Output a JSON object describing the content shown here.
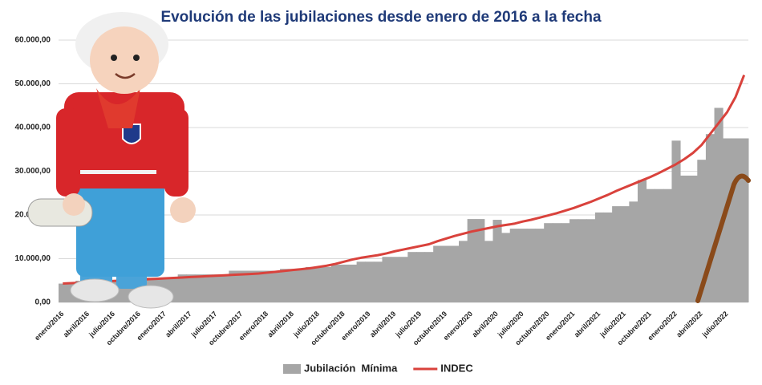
{
  "chart_data": {
    "type": "bar",
    "title": "Evolución de las jubilaciones desde enero de 2016 a la fecha",
    "categories": [
      "enero/2016",
      null,
      null,
      "abril/2016",
      null,
      null,
      "julio/2016",
      null,
      null,
      "octubre/2016",
      null,
      null,
      "enero/2017",
      null,
      null,
      "abril/2017",
      null,
      null,
      "julio/2017",
      null,
      null,
      "octubre/2017",
      null,
      null,
      "enero/2018",
      null,
      null,
      "abril/2018",
      null,
      null,
      "julio/2018",
      null,
      null,
      "octubre/2018",
      null,
      null,
      "enero/2019",
      null,
      null,
      "abril/2019",
      null,
      null,
      "julio/2019",
      null,
      null,
      "octubre/2019",
      null,
      null,
      "enero/2020",
      null,
      null,
      "abril/2020",
      null,
      null,
      "julio/2020",
      null,
      null,
      "octubre/2020",
      null,
      null,
      "enero/2021",
      null,
      null,
      "abril/2021",
      null,
      null,
      "julio/2021",
      null,
      null,
      "octubre/2021",
      null,
      null,
      "enero/2022",
      null,
      null,
      "abril/2022",
      null,
      null,
      "julio/2022",
      null,
      null
    ],
    "series": [
      {
        "name": "Jubilación  Mínima",
        "type": "bar",
        "color": "#a6a6a6",
        "values": [
          4300,
          4300,
          4959,
          4959,
          4959,
          4959,
          4959,
          4959,
          5661,
          5661,
          5661,
          5661,
          5661,
          5661,
          6394,
          6394,
          6394,
          6394,
          6394,
          6394,
          7246,
          7246,
          7246,
          7246,
          7246,
          7246,
          7660,
          7660,
          7660,
          8096,
          8096,
          8096,
          8637,
          8637,
          8637,
          9309,
          9309,
          9309,
          10410,
          10410,
          10410,
          11528,
          11528,
          11528,
          12937,
          12937,
          12937,
          14068,
          19068,
          19068,
          14068,
          18892,
          15892,
          16864,
          16864,
          16864,
          16864,
          18129,
          18129,
          18129,
          19035,
          19035,
          19035,
          20571,
          20571,
          22000,
          22000,
          23065,
          28000,
          25922,
          25922,
          25922,
          37000,
          29000,
          29000,
          32630,
          38500,
          44500,
          37525,
          37525,
          37525
        ]
      },
      {
        "name": "INDEC",
        "type": "line",
        "color": "#d9423c",
        "values": [
          4300,
          4400,
          4500,
          4600,
          4700,
          4800,
          4900,
          5000,
          5100,
          5200,
          5300,
          5400,
          5500,
          5600,
          5700,
          5800,
          5900,
          6000,
          6100,
          6200,
          6300,
          6400,
          6500,
          6600,
          6800,
          7000,
          7200,
          7400,
          7600,
          7800,
          8100,
          8400,
          8800,
          9300,
          9800,
          10200,
          10500,
          10800,
          11200,
          11700,
          12100,
          12500,
          12900,
          13300,
          14000,
          14600,
          15200,
          15700,
          16200,
          16600,
          17000,
          17400,
          17700,
          18000,
          18500,
          18900,
          19400,
          19900,
          20400,
          21000,
          21600,
          22300,
          23000,
          23800,
          24600,
          25500,
          26300,
          27100,
          27900,
          28700,
          29600,
          30600,
          31600,
          32800,
          34200,
          36000,
          38500,
          41000,
          43500,
          47000,
          52000
        ]
      }
    ],
    "ylim": [
      0,
      60000
    ],
    "yticks": [
      {
        "value": 0,
        "label": "0,00"
      },
      {
        "value": 10000,
        "label": "10.000,00"
      },
      {
        "value": 20000,
        "label": "20.000,00"
      },
      {
        "value": 30000,
        "label": "30.000,00"
      },
      {
        "value": 40000,
        "label": "40.000,00"
      },
      {
        "value": 50000,
        "label": "50.000,00"
      },
      {
        "value": 60000,
        "label": "60.000,00"
      }
    ],
    "grid": true,
    "legend": "bottom"
  }
}
